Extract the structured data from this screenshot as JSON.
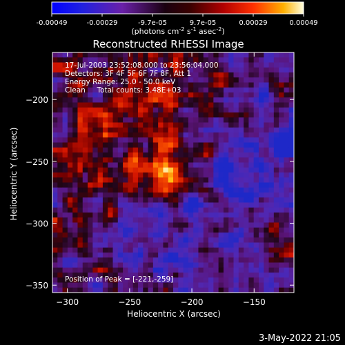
{
  "chart_data": {
    "type": "heatmap",
    "title": "Reconstructed RHESSI Image",
    "xlabel": "Heliocentric X (arcsec)",
    "ylabel": "Heliocentric Y (arcsec)",
    "xlim": [
      -312,
      -118
    ],
    "ylim": [
      -356,
      -162
    ],
    "x_ticks": [
      -300,
      -250,
      -200,
      -150
    ],
    "y_ticks": [
      -200,
      -250,
      -300,
      -350
    ],
    "colorbar": {
      "range": [
        -0.00049,
        0.00049
      ],
      "tick_labels": [
        "-0.00049",
        "-0.00029",
        "-9.7e-05",
        "9.7e-05",
        "0.00029",
        "0.00049"
      ],
      "unit_label_parts": [
        "(photons cm",
        "-2",
        " s",
        "-1",
        " asec",
        "-2",
        ")"
      ]
    },
    "annotations": [
      "17-Jul-2003 23:52:08.000 to 23:56:04.000",
      "Detectors: 3F 4F 5F 6F 7F 8F, Att 1",
      "Energy Range: 25.0 - 50.0 keV",
      "Clean     Total counts: 3.48E+03"
    ],
    "peak": {
      "x": -221,
      "y": -259,
      "label": "Position of Peak = [-221,-259]"
    },
    "grid": false
  },
  "footer": {
    "date": "3-May-2022 21:05"
  }
}
